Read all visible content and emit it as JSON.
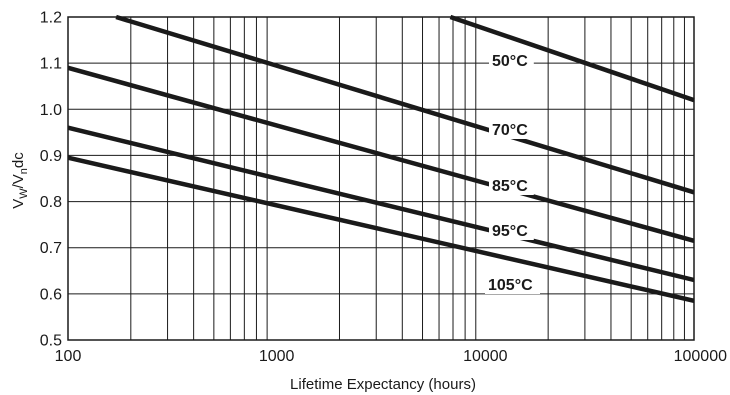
{
  "chart_data": {
    "type": "line",
    "title": "",
    "xlabel": "Lifetime Expectancy (hours)",
    "ylabel": {
      "base1": "V",
      "sub1": "W",
      "mid": "/V",
      "sub2": "n",
      "tail": "dc"
    },
    "x_scale": "log",
    "xlim": [
      100,
      100000
    ],
    "ylim": [
      0.5,
      1.2
    ],
    "x_ticks": [
      100,
      1000,
      10000,
      100000
    ],
    "x_tick_labels": [
      "100",
      "1000",
      "10000",
      "100000"
    ],
    "y_ticks": [
      0.5,
      0.6,
      0.7,
      0.8,
      0.9,
      1.0,
      1.1,
      1.2
    ],
    "y_tick_labels": [
      "0.5",
      "0.6",
      "0.7",
      "0.8",
      "0.9",
      "1.0",
      "1.1",
      "1.2"
    ],
    "grid": true,
    "series": [
      {
        "name": "50°C",
        "x": [
          6800,
          100000
        ],
        "y": [
          1.2,
          1.02
        ]
      },
      {
        "name": "70°C",
        "x": [
          170,
          100000
        ],
        "y": [
          1.2,
          0.82
        ]
      },
      {
        "name": "85°C",
        "x": [
          100,
          100000
        ],
        "y": [
          1.09,
          0.715
        ]
      },
      {
        "name": "95°C",
        "x": [
          100,
          100000
        ],
        "y": [
          0.96,
          0.63
        ]
      },
      {
        "name": "105°C",
        "x": [
          100,
          100000
        ],
        "y": [
          0.895,
          0.585
        ]
      }
    ]
  }
}
